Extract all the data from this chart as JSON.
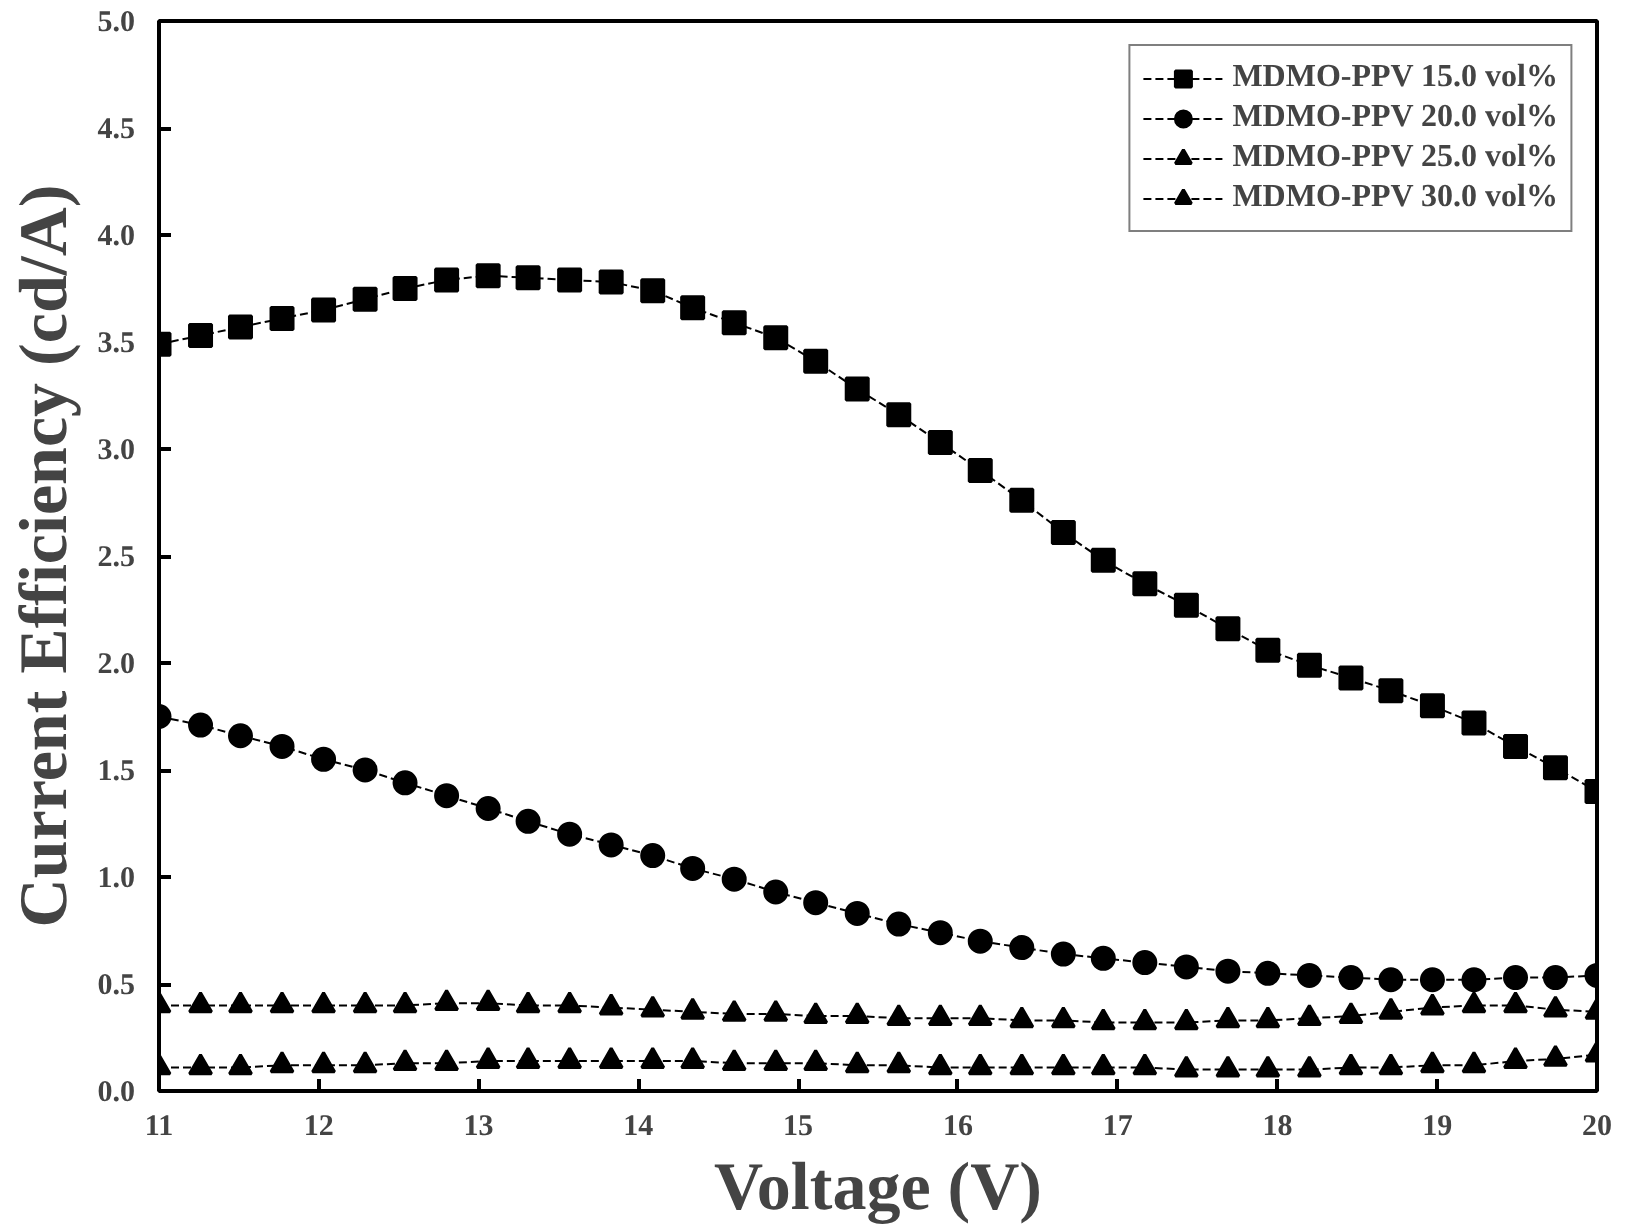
{
  "chart_data": {
    "type": "line",
    "xlabel": "Voltage (V)",
    "ylabel": "Current Efficiency (cd/A)",
    "xlim": [
      11,
      20
    ],
    "ylim": [
      0,
      5
    ],
    "xticks": [
      11,
      12,
      13,
      14,
      15,
      16,
      17,
      18,
      19,
      20
    ],
    "yticks": [
      {
        "value": 0,
        "label": "0.0"
      },
      0.5,
      {
        "value": 1,
        "label": "1.0"
      },
      1.5,
      {
        "value": 2,
        "label": "2.0"
      },
      2.5,
      {
        "value": 3,
        "label": "3.0"
      },
      3.5,
      {
        "value": 4,
        "label": "4.0"
      },
      4.5,
      {
        "value": 5,
        "label": "5.0"
      }
    ],
    "x": [
      11,
      11.26,
      11.51,
      11.77,
      12.03,
      12.29,
      12.54,
      12.8,
      13.06,
      13.31,
      13.57,
      13.83,
      14.09,
      14.34,
      14.6,
      14.86,
      15.11,
      15.37,
      15.63,
      15.89,
      16.14,
      16.4,
      16.66,
      16.91,
      17.17,
      17.43,
      17.69,
      17.94,
      18.2,
      18.46,
      18.71,
      18.97,
      19.23,
      19.49,
      19.74,
      20
    ],
    "grid": false,
    "legend": "top right",
    "line_style": "dashed",
    "series": [
      {
        "name": "MDMO-PPV 15.0 vol%",
        "color": "#000000",
        "marker": "square",
        "values": [
          3.49,
          3.53,
          3.57,
          3.61,
          3.65,
          3.7,
          3.75,
          3.79,
          3.81,
          3.8,
          3.79,
          3.78,
          3.74,
          3.66,
          3.59,
          3.52,
          3.41,
          3.28,
          3.16,
          3.03,
          2.9,
          2.76,
          2.61,
          2.48,
          2.37,
          2.27,
          2.16,
          2.06,
          1.99,
          1.93,
          1.87,
          1.8,
          1.72,
          1.61,
          1.51,
          1.4
        ]
      },
      {
        "name": "MDMO-PPV 20.0 vol%",
        "color": "#000000",
        "marker": "circle",
        "values": [
          1.75,
          1.71,
          1.66,
          1.61,
          1.55,
          1.5,
          1.44,
          1.38,
          1.32,
          1.26,
          1.2,
          1.15,
          1.1,
          1.04,
          0.99,
          0.93,
          0.88,
          0.83,
          0.78,
          0.74,
          0.7,
          0.67,
          0.64,
          0.62,
          0.6,
          0.58,
          0.56,
          0.55,
          0.54,
          0.53,
          0.52,
          0.52,
          0.52,
          0.53,
          0.53,
          0.54
        ]
      },
      {
        "name": "MDMO-PPV 25.0 vol%",
        "color": "#000000",
        "marker": "triangle",
        "values": [
          0.4,
          0.4,
          0.4,
          0.4,
          0.4,
          0.4,
          0.4,
          0.41,
          0.41,
          0.4,
          0.4,
          0.39,
          0.38,
          0.37,
          0.36,
          0.36,
          0.35,
          0.35,
          0.34,
          0.34,
          0.34,
          0.33,
          0.33,
          0.32,
          0.32,
          0.32,
          0.33,
          0.33,
          0.34,
          0.35,
          0.37,
          0.39,
          0.4,
          0.4,
          0.38,
          0.37
        ]
      },
      {
        "name": "MDMO-PPV 30.0 vol%",
        "color": "#000000",
        "marker": "triangle",
        "values": [
          0.11,
          0.11,
          0.11,
          0.12,
          0.12,
          0.12,
          0.13,
          0.13,
          0.14,
          0.14,
          0.14,
          0.14,
          0.14,
          0.14,
          0.13,
          0.13,
          0.13,
          0.12,
          0.12,
          0.11,
          0.11,
          0.11,
          0.11,
          0.11,
          0.11,
          0.1,
          0.1,
          0.1,
          0.1,
          0.11,
          0.11,
          0.12,
          0.12,
          0.14,
          0.15,
          0.17
        ]
      }
    ]
  }
}
